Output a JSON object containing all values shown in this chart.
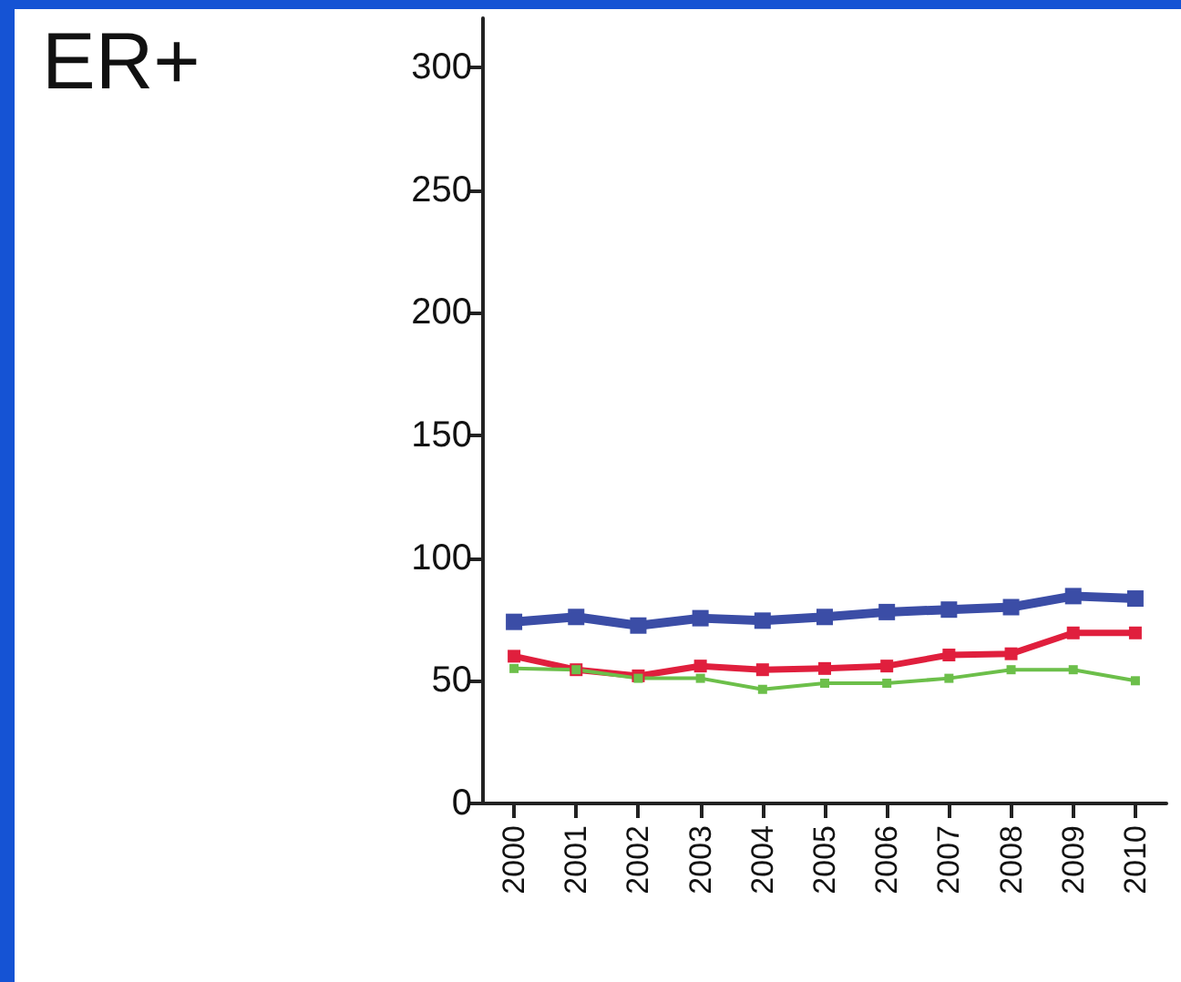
{
  "chart_data": {
    "type": "line",
    "title": "ER+",
    "categories": [
      "2000",
      "2001",
      "2002",
      "2003",
      "2004",
      "2005",
      "2006",
      "2007",
      "2008",
      "2009",
      "2010"
    ],
    "series": [
      {
        "color": "#3b4da6",
        "values": [
          74,
          76,
          72.5,
          75.5,
          74.5,
          76,
          78,
          79,
          80,
          84.5,
          83.5
        ]
      },
      {
        "color": "#e01f3d",
        "values": [
          60,
          54.5,
          52,
          56,
          54.5,
          55,
          56,
          60.5,
          61,
          69.5,
          69.5
        ]
      },
      {
        "color": "#6cbf4a",
        "values": [
          55,
          54.5,
          51,
          51,
          46.5,
          49,
          49,
          51,
          54.5,
          54.5,
          50
        ]
      }
    ],
    "ylim": [
      0,
      320
    ],
    "yticks": [
      0,
      50,
      100,
      150,
      200,
      250,
      300
    ],
    "grid": false,
    "marker": "square",
    "line_style": "solid"
  }
}
